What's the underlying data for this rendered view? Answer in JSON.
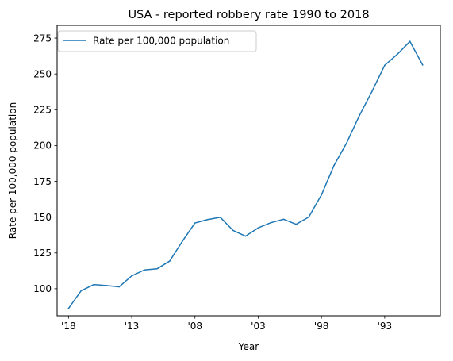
{
  "chart_data": {
    "type": "line",
    "title": "USA - reported robbery rate 1990 to 2018",
    "xlabel": "Year",
    "ylabel": "Rate per 100,000 population",
    "x": [
      2018,
      2017,
      2016,
      2015,
      2014,
      2013,
      2012,
      2011,
      2010,
      2009,
      2008,
      2007,
      2006,
      2005,
      2004,
      2003,
      2002,
      2001,
      2000,
      1999,
      1998,
      1997,
      1996,
      1995,
      1994,
      1993,
      1992,
      1991,
      1990
    ],
    "x_tick_values": [
      2018,
      2013,
      2008,
      2003,
      1998,
      1993
    ],
    "x_tick_labels": [
      "'18",
      "'13",
      "'08",
      "'03",
      "'98",
      "'93"
    ],
    "x_reversed": true,
    "xlim": [
      2018.9,
      1988.6
    ],
    "ylim": [
      81.1,
      283.9
    ],
    "y_ticks": [
      100,
      125,
      150,
      175,
      200,
      225,
      250,
      275
    ],
    "grid": false,
    "legend_position": "top-left",
    "series": [
      {
        "name": "Rate per 100,000 population",
        "color": "#1f77b4",
        "values": [
          86.2,
          98.6,
          102.9,
          102.2,
          101.3,
          109.0,
          113.1,
          113.9,
          119.3,
          133.1,
          145.9,
          148.3,
          149.9,
          140.8,
          136.7,
          142.5,
          146.1,
          148.5,
          145.0,
          150.1,
          165.5,
          186.2,
          201.9,
          220.9,
          237.8,
          256.0,
          263.7,
          272.7,
          256.3
        ]
      }
    ]
  }
}
